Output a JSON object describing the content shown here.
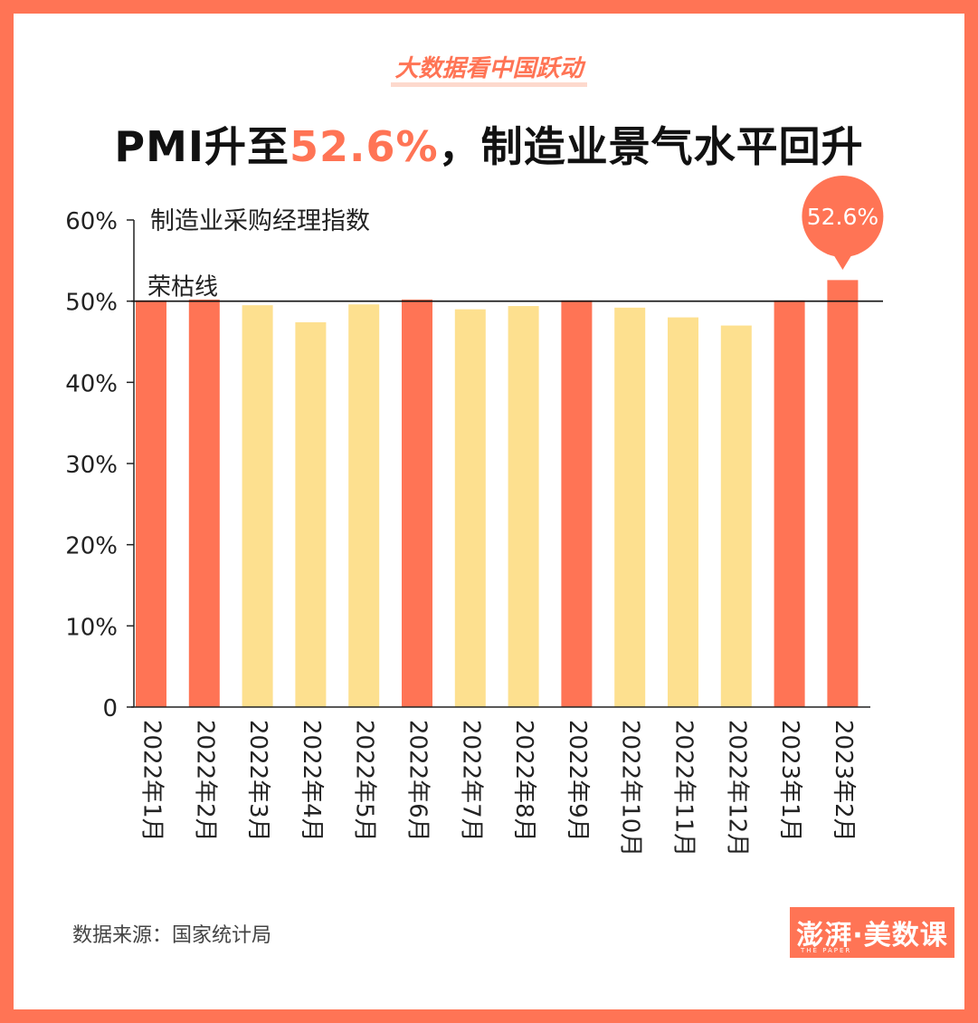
{
  "kicker": "大数据看中国跃动",
  "title": {
    "prefix": "PMI升至",
    "highlight": "52.6%",
    "suffix": "，制造业景气水平回升"
  },
  "colors": {
    "accent": "#ff7455",
    "above": "#ff7455",
    "below": "#fde08f",
    "frame": "#ff7455"
  },
  "chart_data": {
    "type": "bar",
    "title": "PMI升至52.6%，制造业景气水平回升",
    "series_label": "制造业采购经理指数",
    "categories": [
      "2022年1月",
      "2022年2月",
      "2022年3月",
      "2022年4月",
      "2022年5月",
      "2022年6月",
      "2022年7月",
      "2022年8月",
      "2022年9月",
      "2022年10月",
      "2022年11月",
      "2022年12月",
      "2023年1月",
      "2023年2月"
    ],
    "values": [
      50.1,
      50.2,
      49.5,
      47.4,
      49.6,
      50.2,
      49.0,
      49.4,
      50.1,
      49.2,
      48.0,
      47.0,
      50.1,
      52.6
    ],
    "ylim": [
      0,
      60
    ],
    "yticks": [
      0,
      10,
      20,
      30,
      40,
      50,
      60
    ],
    "ytick_labels": [
      "0",
      "10%",
      "20%",
      "30%",
      "40%",
      "50%",
      "60%"
    ],
    "reference_line": {
      "value": 50,
      "label": "荣枯线"
    },
    "callout": {
      "index": 13,
      "label": "52.6%"
    },
    "xlabel": "",
    "ylabel": ""
  },
  "source": "数据来源：国家统计局",
  "logo": {
    "text": "澎湃·美数课",
    "sub": "THE PAPER"
  }
}
